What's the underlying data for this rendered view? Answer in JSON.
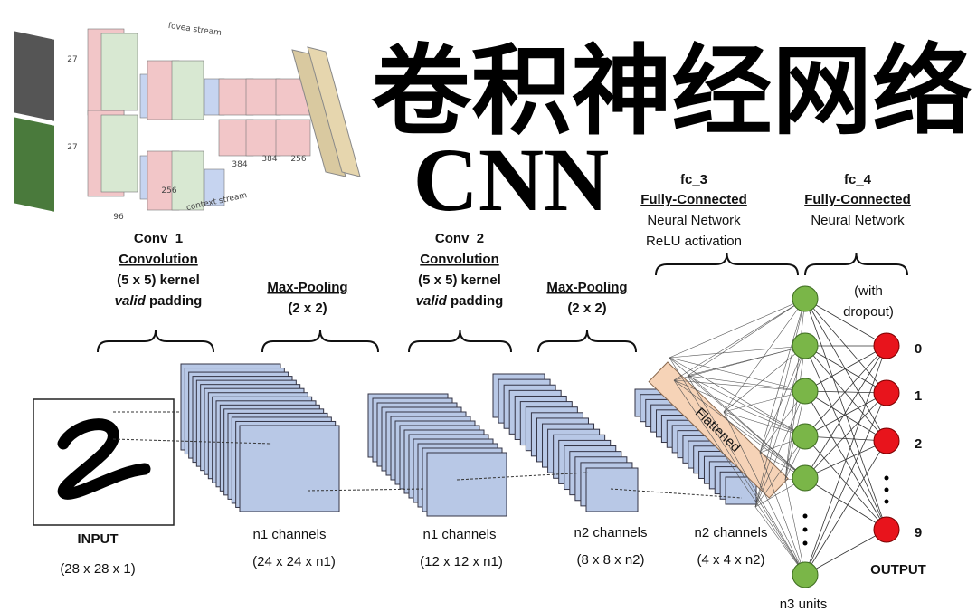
{
  "title": "卷积神经网络",
  "subtitle": "CNN",
  "inset": {
    "top_stream": "fovea stream",
    "bottom_stream": "context stream",
    "dims": [
      "27",
      "27",
      "96",
      "256",
      "384",
      "384",
      "256"
    ]
  },
  "layers": {
    "conv1": {
      "name": "Conv_1",
      "type": "Convolution",
      "kernel": "(5 x 5) kernel",
      "padding_em": "valid",
      "padding": " padding"
    },
    "pool1": {
      "type": "Max-Pooling",
      "size": "(2 x 2)"
    },
    "conv2": {
      "name": "Conv_2",
      "type": "Convolution",
      "kernel": "(5 x 5) kernel",
      "padding_em": "valid",
      "padding": " padding"
    },
    "pool2": {
      "type": "Max-Pooling",
      "size": "(2 x 2)"
    },
    "fc3": {
      "name": "fc_3",
      "type": "Fully-Connected",
      "l1": "Neural Network",
      "l2": "ReLU activation"
    },
    "fc4": {
      "name": "fc_4",
      "type": "Fully-Connected",
      "l1": "Neural Network",
      "note1": "(with",
      "note2": "dropout)"
    }
  },
  "volumes": [
    {
      "label": "INPUT",
      "dims": "(28 x 28 x 1)"
    },
    {
      "label": "n1 channels",
      "dims": "(24 x 24 x n1)"
    },
    {
      "label": "n1 channels",
      "dims": "(12 x 12 x n1)"
    },
    {
      "label": "n2 channels",
      "dims": "(8 x 8 x n2)"
    },
    {
      "label": "n2 channels",
      "dims": "(4 x 4 x n2)"
    }
  ],
  "flattened": "Flattened",
  "hidden_label": "n3 units",
  "outputs": [
    "0",
    "1",
    "2",
    "⋮",
    "9"
  ],
  "output_label": "OUTPUT",
  "colors": {
    "feature_map": "#b8c8e6",
    "hidden_node": "#7ab648",
    "output_node": "#e8141c",
    "flatten": "#f6d3b7"
  }
}
